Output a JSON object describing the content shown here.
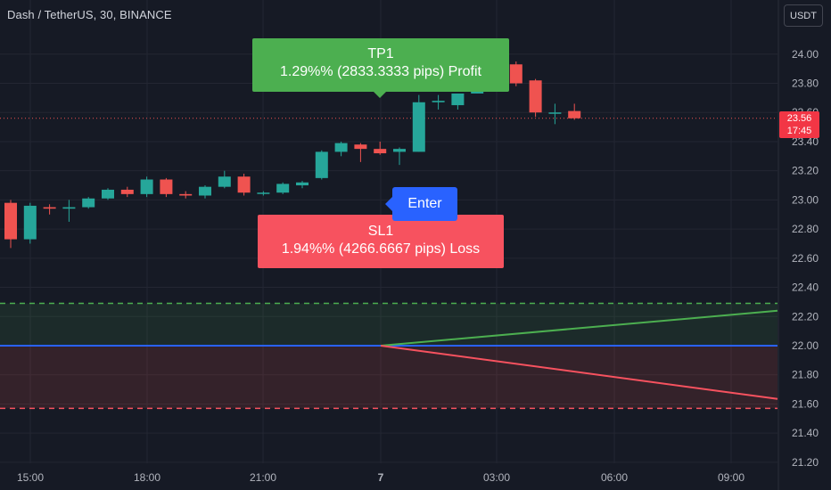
{
  "header": {
    "symbol": "Dash / TetherUS, 30, BINANCE",
    "currency_button": "USDT"
  },
  "labels": {
    "tp_title": "TP1",
    "tp_detail": "1.29%% (2833.3333 pips) Profit",
    "sl_title": "SL1",
    "sl_detail": "1.94%% (4266.6667 pips) Loss",
    "enter": "Enter",
    "last_price": "23.56",
    "countdown": "17:45"
  },
  "colors": {
    "background": "#161a25",
    "up": "#26a69a",
    "down": "#ef5350",
    "profit": "#4caf50",
    "loss": "#f7525f",
    "entry": "#2962ff"
  },
  "chart_data": {
    "type": "candlestick",
    "y_axis": {
      "range": [
        21.2,
        24.1
      ],
      "ticks": [
        "24.00",
        "23.80",
        "23.60",
        "23.40",
        "23.20",
        "23.00",
        "22.80",
        "22.60",
        "22.40",
        "22.20",
        "22.00",
        "21.80",
        "21.60",
        "21.40",
        "21.20"
      ]
    },
    "x_axis": {
      "ticks": [
        "15:00",
        "18:00",
        "21:00",
        "7",
        "03:00",
        "06:00",
        "09:00"
      ]
    },
    "grid": true,
    "last_price": 23.56,
    "entry_price": 22.0,
    "tp_price": 22.29,
    "sl_price": 21.57,
    "candles": [
      {
        "o": 22.98,
        "h": 23.0,
        "l": 22.67,
        "c": 22.73
      },
      {
        "o": 22.73,
        "h": 22.98,
        "l": 22.7,
        "c": 22.96
      },
      {
        "o": 22.95,
        "h": 22.97,
        "l": 22.9,
        "c": 22.94
      },
      {
        "o": 22.94,
        "h": 23.0,
        "l": 22.85,
        "c": 22.95
      },
      {
        "o": 22.95,
        "h": 23.02,
        "l": 22.94,
        "c": 23.01
      },
      {
        "o": 23.01,
        "h": 23.08,
        "l": 23.0,
        "c": 23.07
      },
      {
        "o": 23.07,
        "h": 23.09,
        "l": 23.02,
        "c": 23.04
      },
      {
        "o": 23.04,
        "h": 23.16,
        "l": 23.02,
        "c": 23.14
      },
      {
        "o": 23.14,
        "h": 23.15,
        "l": 23.02,
        "c": 23.04
      },
      {
        "o": 23.04,
        "h": 23.06,
        "l": 23.01,
        "c": 23.03
      },
      {
        "o": 23.03,
        "h": 23.1,
        "l": 23.01,
        "c": 23.09
      },
      {
        "o": 23.09,
        "h": 23.2,
        "l": 23.08,
        "c": 23.16
      },
      {
        "o": 23.16,
        "h": 23.18,
        "l": 23.03,
        "c": 23.05
      },
      {
        "o": 23.05,
        "h": 23.06,
        "l": 23.03,
        "c": 23.05
      },
      {
        "o": 23.05,
        "h": 23.12,
        "l": 23.04,
        "c": 23.11
      },
      {
        "o": 23.1,
        "h": 23.13,
        "l": 23.08,
        "c": 23.12
      },
      {
        "o": 23.15,
        "h": 23.34,
        "l": 23.14,
        "c": 23.33
      },
      {
        "o": 23.33,
        "h": 23.4,
        "l": 23.3,
        "c": 23.39
      },
      {
        "o": 23.38,
        "h": 23.39,
        "l": 23.26,
        "c": 23.35
      },
      {
        "o": 23.35,
        "h": 23.4,
        "l": 23.31,
        "c": 23.32
      },
      {
        "o": 23.33,
        "h": 23.36,
        "l": 23.24,
        "c": 23.35
      },
      {
        "o": 23.33,
        "h": 23.72,
        "l": 23.33,
        "c": 23.67
      },
      {
        "o": 23.67,
        "h": 23.72,
        "l": 23.62,
        "c": 23.68
      },
      {
        "o": 23.65,
        "h": 23.73,
        "l": 23.62,
        "c": 23.73
      },
      {
        "o": 23.73,
        "h": 23.95,
        "l": 23.73,
        "c": 23.93
      },
      {
        "o": 23.93,
        "h": 23.95,
        "l": 23.88,
        "c": 23.92
      },
      {
        "o": 23.93,
        "h": 23.95,
        "l": 23.78,
        "c": 23.8
      },
      {
        "o": 23.82,
        "h": 23.83,
        "l": 23.57,
        "c": 23.6
      },
      {
        "o": 23.6,
        "h": 23.66,
        "l": 23.52,
        "c": 23.6
      },
      {
        "o": 23.61,
        "h": 23.66,
        "l": 23.55,
        "c": 23.56
      }
    ]
  }
}
